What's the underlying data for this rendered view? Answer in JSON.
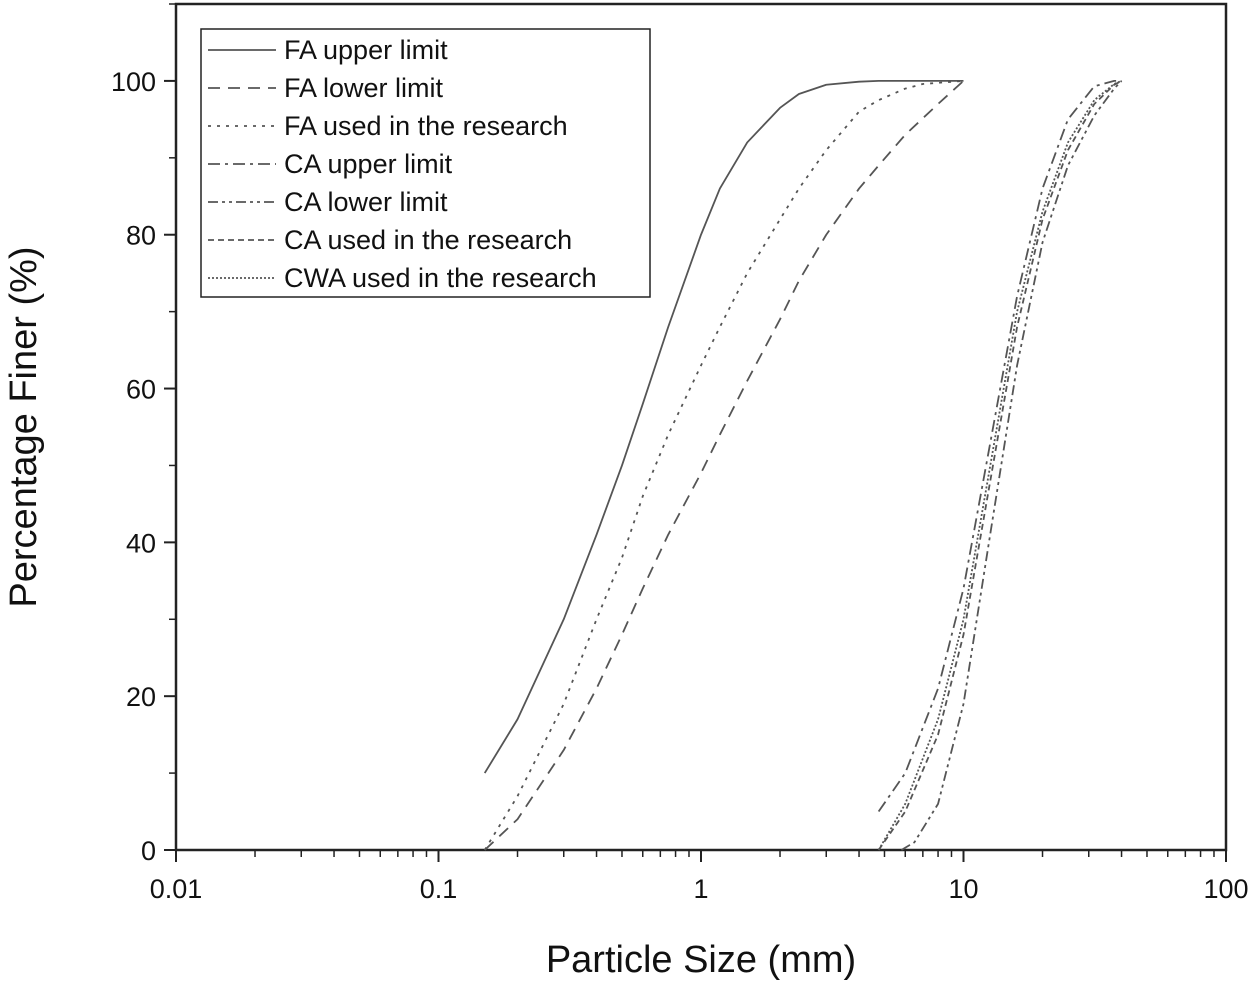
{
  "chart_data": {
    "type": "line",
    "title": "",
    "xlabel": "Particle Size (mm)",
    "ylabel": "Percentage Finer (%)",
    "x_scale": "log",
    "xlim": [
      0.01,
      100
    ],
    "ylim": [
      0,
      110
    ],
    "x_ticks": [
      0.01,
      0.1,
      1,
      10,
      100
    ],
    "x_tick_labels": [
      "0.01",
      "0.1",
      "1",
      "10",
      "100"
    ],
    "y_ticks": [
      0,
      20,
      40,
      60,
      80,
      100
    ],
    "y_tick_labels": [
      "0",
      "20",
      "40",
      "60",
      "80",
      "100"
    ],
    "grid": false,
    "legend_position": "top-left",
    "series": [
      {
        "name": "FA upper limit",
        "dash": "solid",
        "x": [
          0.15,
          0.2,
          0.3,
          0.4,
          0.5,
          0.6,
          0.75,
          1.0,
          1.18,
          1.5,
          2.0,
          2.36,
          3.0,
          4.0,
          4.75,
          10
        ],
        "y": [
          10,
          17,
          30,
          41,
          50,
          58,
          68,
          80,
          86,
          92,
          96.5,
          98.3,
          99.5,
          99.9,
          100,
          100
        ]
      },
      {
        "name": "FA lower limit",
        "dash": "dashed",
        "x": [
          0.15,
          0.2,
          0.3,
          0.4,
          0.5,
          0.6,
          0.75,
          1.0,
          1.18,
          1.5,
          2.0,
          2.36,
          3.0,
          4.0,
          4.75,
          6.0,
          8.0,
          10
        ],
        "y": [
          0,
          4,
          13,
          21,
          28,
          34,
          41,
          49,
          54,
          61,
          69,
          74,
          80,
          86,
          89,
          93,
          97,
          100
        ]
      },
      {
        "name": "FA used in the research",
        "dash": "dotted",
        "x": [
          0.15,
          0.2,
          0.3,
          0.4,
          0.5,
          0.6,
          0.75,
          1.0,
          1.18,
          1.5,
          2.0,
          2.36,
          3.0,
          4.0,
          4.75,
          6.0,
          7.0,
          10
        ],
        "y": [
          0,
          7,
          19,
          30,
          38,
          46,
          54,
          63,
          68,
          75,
          82,
          86,
          91,
          96,
          97.5,
          99,
          99.6,
          100
        ]
      },
      {
        "name": "CA upper limit",
        "dash": "dash-dot",
        "x": [
          4.75,
          6.0,
          8.0,
          10,
          12.5,
          16,
          20,
          25,
          31.5,
          37.5,
          40
        ],
        "y": [
          5,
          10,
          21,
          34,
          52,
          72,
          86,
          95,
          99.3,
          100,
          100
        ]
      },
      {
        "name": "CA lower limit",
        "dash": "dash-dot-dot",
        "x": [
          5.8,
          6.5,
          8.0,
          10,
          12.5,
          16,
          20,
          25,
          31.5,
          37.5,
          40
        ],
        "y": [
          0,
          1,
          6,
          19,
          40,
          63,
          79,
          89,
          95.5,
          99,
          100
        ]
      },
      {
        "name": "CA used in the research",
        "dash": "short-dash",
        "x": [
          4.75,
          6.0,
          8.0,
          10,
          12.5,
          16,
          20,
          25,
          31.5,
          37.5,
          40
        ],
        "y": [
          0,
          5,
          15,
          28,
          47,
          68,
          82,
          91,
          97,
          99.5,
          100
        ]
      },
      {
        "name": "CWA used in the research",
        "dash": "fine-dot",
        "x": [
          4.75,
          6.0,
          8.0,
          10,
          12.5,
          16,
          20,
          25,
          31.5,
          37.5,
          40
        ],
        "y": [
          0,
          6,
          17,
          30,
          49,
          70,
          83,
          92,
          97.5,
          99.6,
          100
        ]
      }
    ]
  }
}
